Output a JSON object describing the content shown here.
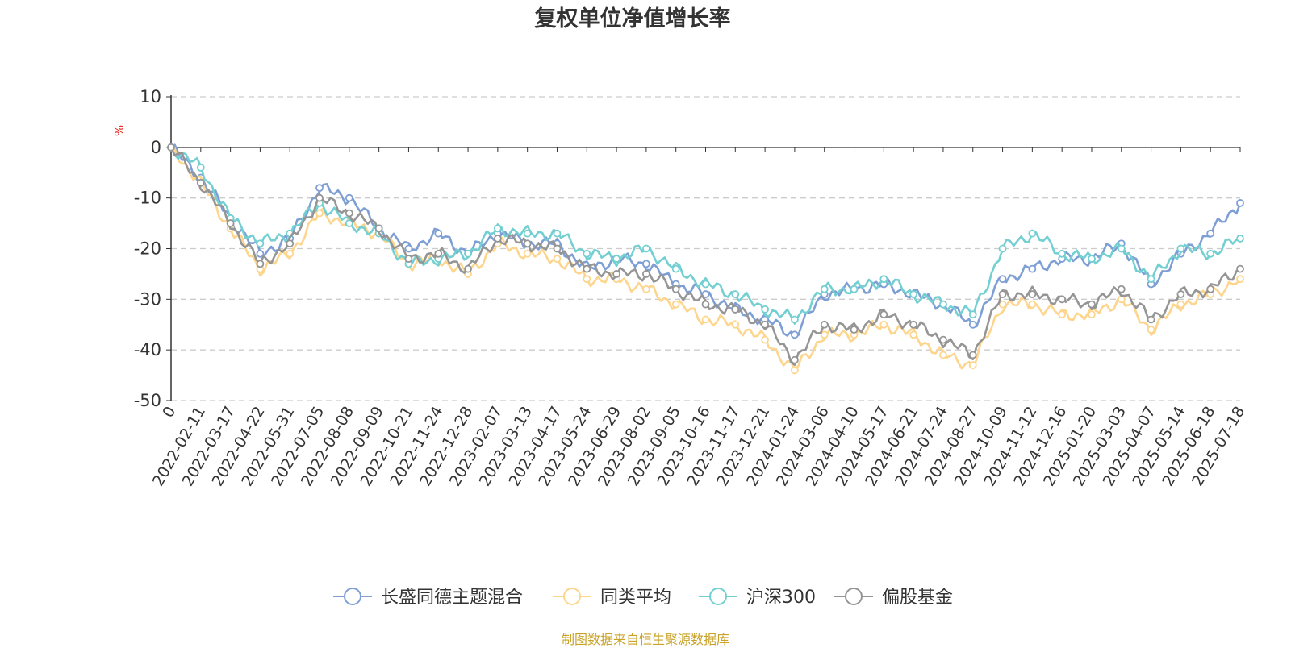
{
  "chart_data": {
    "type": "line",
    "title": "复权单位净值增长率",
    "ylabel": "%",
    "ylim": [
      -50,
      10
    ],
    "yticks": [
      10,
      0,
      -10,
      -20,
      -30,
      -40,
      -50
    ],
    "grid": true,
    "legend_position": "bottom",
    "x_tick_labels": [
      "0",
      "2022-02-11",
      "2022-03-17",
      "2022-04-22",
      "2022-05-31",
      "2022-07-05",
      "2022-08-08",
      "2022-09-09",
      "2022-10-21",
      "2022-11-24",
      "2022-12-28",
      "2023-02-07",
      "2023-03-13",
      "2023-04-17",
      "2023-05-24",
      "2023-06-29",
      "2023-08-02",
      "2023-09-05",
      "2023-10-16",
      "2023-11-17",
      "2023-12-21",
      "2024-01-24",
      "2024-03-06",
      "2024-04-10",
      "2024-05-17",
      "2024-06-21",
      "2024-07-24",
      "2024-08-27",
      "2024-10-09",
      "2024-11-12",
      "2024-12-16",
      "2025-01-20",
      "2025-03-03",
      "2025-04-07",
      "2025-05-14",
      "2025-06-18",
      "2025-07-18"
    ],
    "x": [
      "0",
      "2022-02-11",
      "2022-03-17",
      "2022-04-22",
      "2022-05-31",
      "2022-07-05",
      "2022-08-08",
      "2022-09-09",
      "2022-10-21",
      "2022-11-24",
      "2022-12-28",
      "2023-02-07",
      "2023-03-13",
      "2023-04-17",
      "2023-05-24",
      "2023-06-29",
      "2023-08-02",
      "2023-09-05",
      "2023-10-16",
      "2023-11-17",
      "2023-12-21",
      "2024-01-24",
      "2024-03-06",
      "2024-04-10",
      "2024-05-17",
      "2024-06-21",
      "2024-07-24",
      "2024-08-27",
      "2024-10-09",
      "2024-11-12",
      "2024-12-16",
      "2025-01-20",
      "2025-03-03",
      "2025-04-07",
      "2025-05-14",
      "2025-06-18",
      "2025-07-18"
    ],
    "series": [
      {
        "name": "长盛同德主题混合",
        "color": "#7e9fd4",
        "values": [
          0,
          -6,
          -14,
          -21,
          -18,
          -8,
          -10,
          -16,
          -20,
          -17,
          -21,
          -17,
          -19,
          -19,
          -24,
          -22,
          -23,
          -27,
          -29,
          -32,
          -34,
          -37,
          -29,
          -28,
          -27,
          -29,
          -31,
          -35,
          -26,
          -24,
          -22,
          -22,
          -19,
          -27,
          -21,
          -17,
          -11
        ]
      },
      {
        "name": "同类平均",
        "color": "#fdd58c",
        "values": [
          0,
          -7,
          -16,
          -24,
          -21,
          -13,
          -15,
          -17,
          -23,
          -22,
          -25,
          -19,
          -21,
          -22,
          -26,
          -26,
          -28,
          -31,
          -34,
          -35,
          -38,
          -44,
          -37,
          -37,
          -35,
          -37,
          -41,
          -43,
          -31,
          -31,
          -33,
          -33,
          -30,
          -36,
          -31,
          -29,
          -26
        ]
      },
      {
        "name": "沪深300",
        "color": "#73cfd1",
        "values": [
          0,
          -4,
          -14,
          -19,
          -17,
          -11,
          -15,
          -17,
          -23,
          -22,
          -21,
          -16,
          -17,
          -17,
          -21,
          -22,
          -20,
          -24,
          -27,
          -29,
          -32,
          -34,
          -28,
          -28,
          -26,
          -29,
          -31,
          -33,
          -20,
          -17,
          -21,
          -22,
          -20,
          -26,
          -20,
          -21,
          -18
        ]
      },
      {
        "name": "偏股基金",
        "color": "#959595",
        "values": [
          0,
          -7,
          -15,
          -23,
          -19,
          -10,
          -13,
          -16,
          -22,
          -21,
          -24,
          -18,
          -19,
          -20,
          -24,
          -25,
          -25,
          -28,
          -31,
          -32,
          -35,
          -42,
          -35,
          -36,
          -33,
          -35,
          -38,
          -41,
          -29,
          -29,
          -30,
          -31,
          -28,
          -34,
          -29,
          -28,
          -24
        ]
      }
    ]
  },
  "source_text": "制图数据来自恒生聚源数据库"
}
